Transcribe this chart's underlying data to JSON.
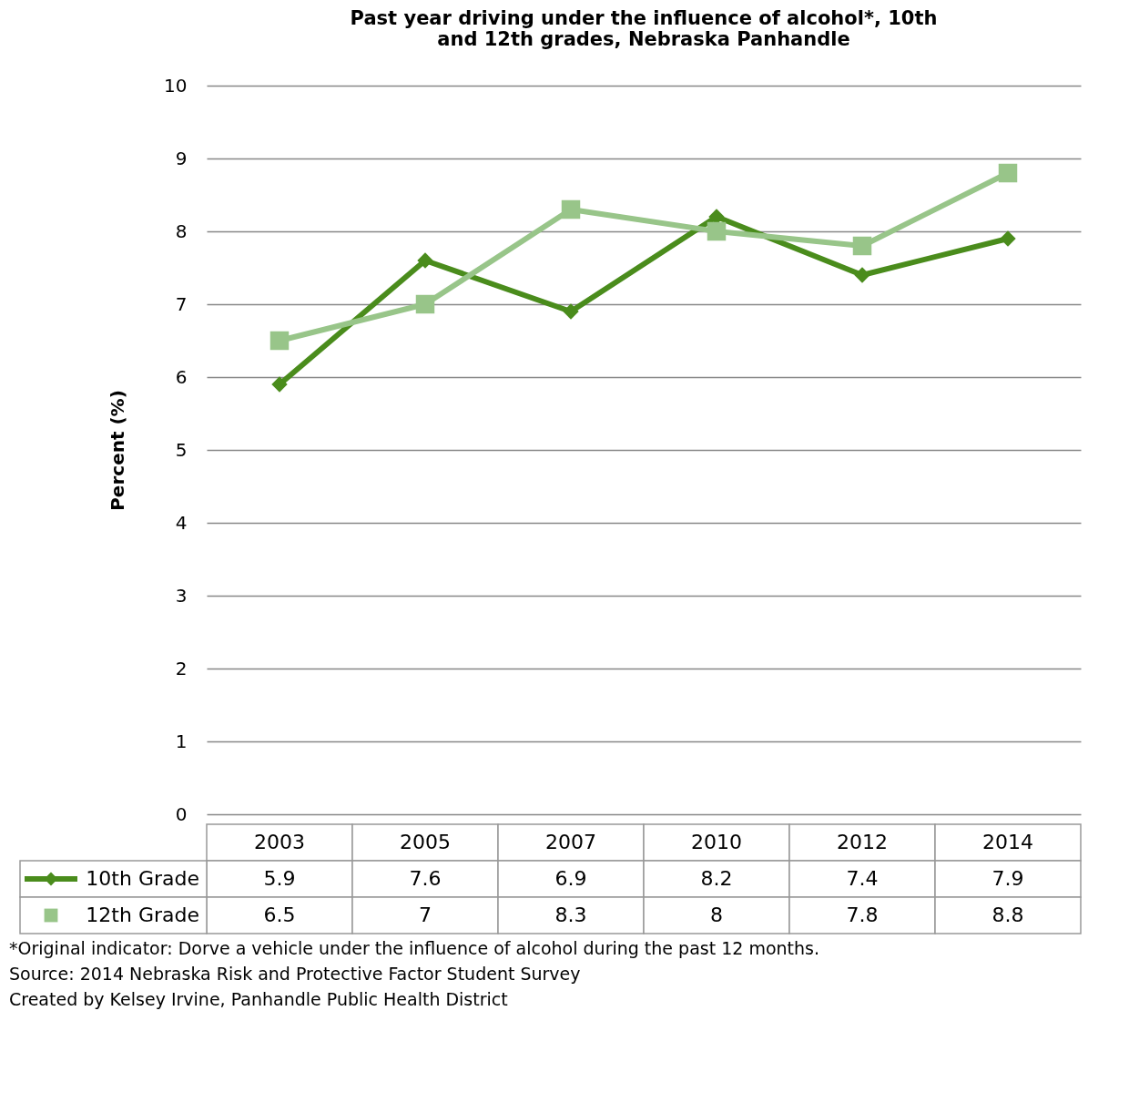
{
  "chart_data": {
    "type": "line",
    "title": "Past year driving under the influence of alcohol*, 10th and 12th grades, Nebraska Panhandle",
    "ylabel": "Percent (%)",
    "categories": [
      "2003",
      "2005",
      "2007",
      "2010",
      "2012",
      "2014"
    ],
    "series": [
      {
        "name": "10th Grade",
        "color": "#4a8c1c",
        "marker": "diamond",
        "values": [
          5.9,
          7.6,
          6.9,
          8.2,
          7.4,
          7.9
        ]
      },
      {
        "name": "12th Grade",
        "color": "#98c589",
        "marker": "square",
        "values": [
          6.5,
          7,
          8.3,
          8,
          7.8,
          8.8
        ]
      }
    ],
    "ylim": [
      0,
      10
    ],
    "yticks": [
      0,
      1,
      2,
      3,
      4,
      5,
      6,
      7,
      8,
      9,
      10
    ],
    "grid": "y",
    "legend": "bottom",
    "data_labels": true,
    "tick_labels": "y",
    "annotations": [
      "*Original indicator: Dorve a vehicle under the influence of alcohol during the past 12 months.",
      "Source: 2014 Nebraska Risk and Protective Factor Student Survey",
      "Created by Kelsey Irvine, Panhandle Public Health District"
    ]
  }
}
